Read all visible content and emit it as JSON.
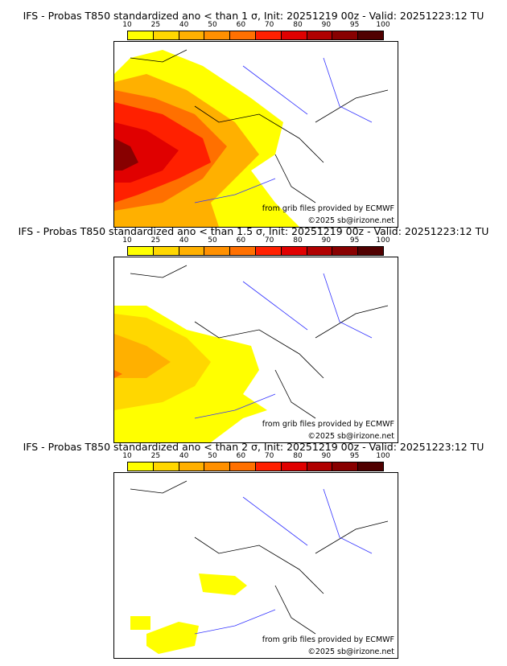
{
  "colorbar": {
    "ticks": [
      "10",
      "25",
      "40",
      "50",
      "60",
      "70",
      "80",
      "90",
      "95",
      "100"
    ],
    "colors": [
      "#ffff00",
      "#ffd700",
      "#ffb000",
      "#ff9000",
      "#ff7000",
      "#ff2000",
      "#e00000",
      "#b00000",
      "#880000",
      "#500000"
    ]
  },
  "panels": [
    {
      "title": "IFS - Probas T850  standardized ano < than 1 σ, Init: 20251219 00z - Valid: 20251223:12 TU",
      "credit_source": "from grib files provided by ECMWF",
      "credit_copy": "©2025 sb@irizone.net"
    },
    {
      "title": "IFS - Probas T850  standardized ano < than 1.5 σ, Init: 20251219 00z - Valid: 20251223:12 TU",
      "credit_source": "from grib files provided by ECMWF",
      "credit_copy": "©2025 sb@irizone.net"
    },
    {
      "title": "IFS - Probas T850  standardized ano < than 2 σ, Init: 20251219 00z - Valid: 20251223:12 TU",
      "credit_source": "from grib files provided by ECMWF",
      "credit_copy": "©2025 sb@irizone.net"
    }
  ]
}
